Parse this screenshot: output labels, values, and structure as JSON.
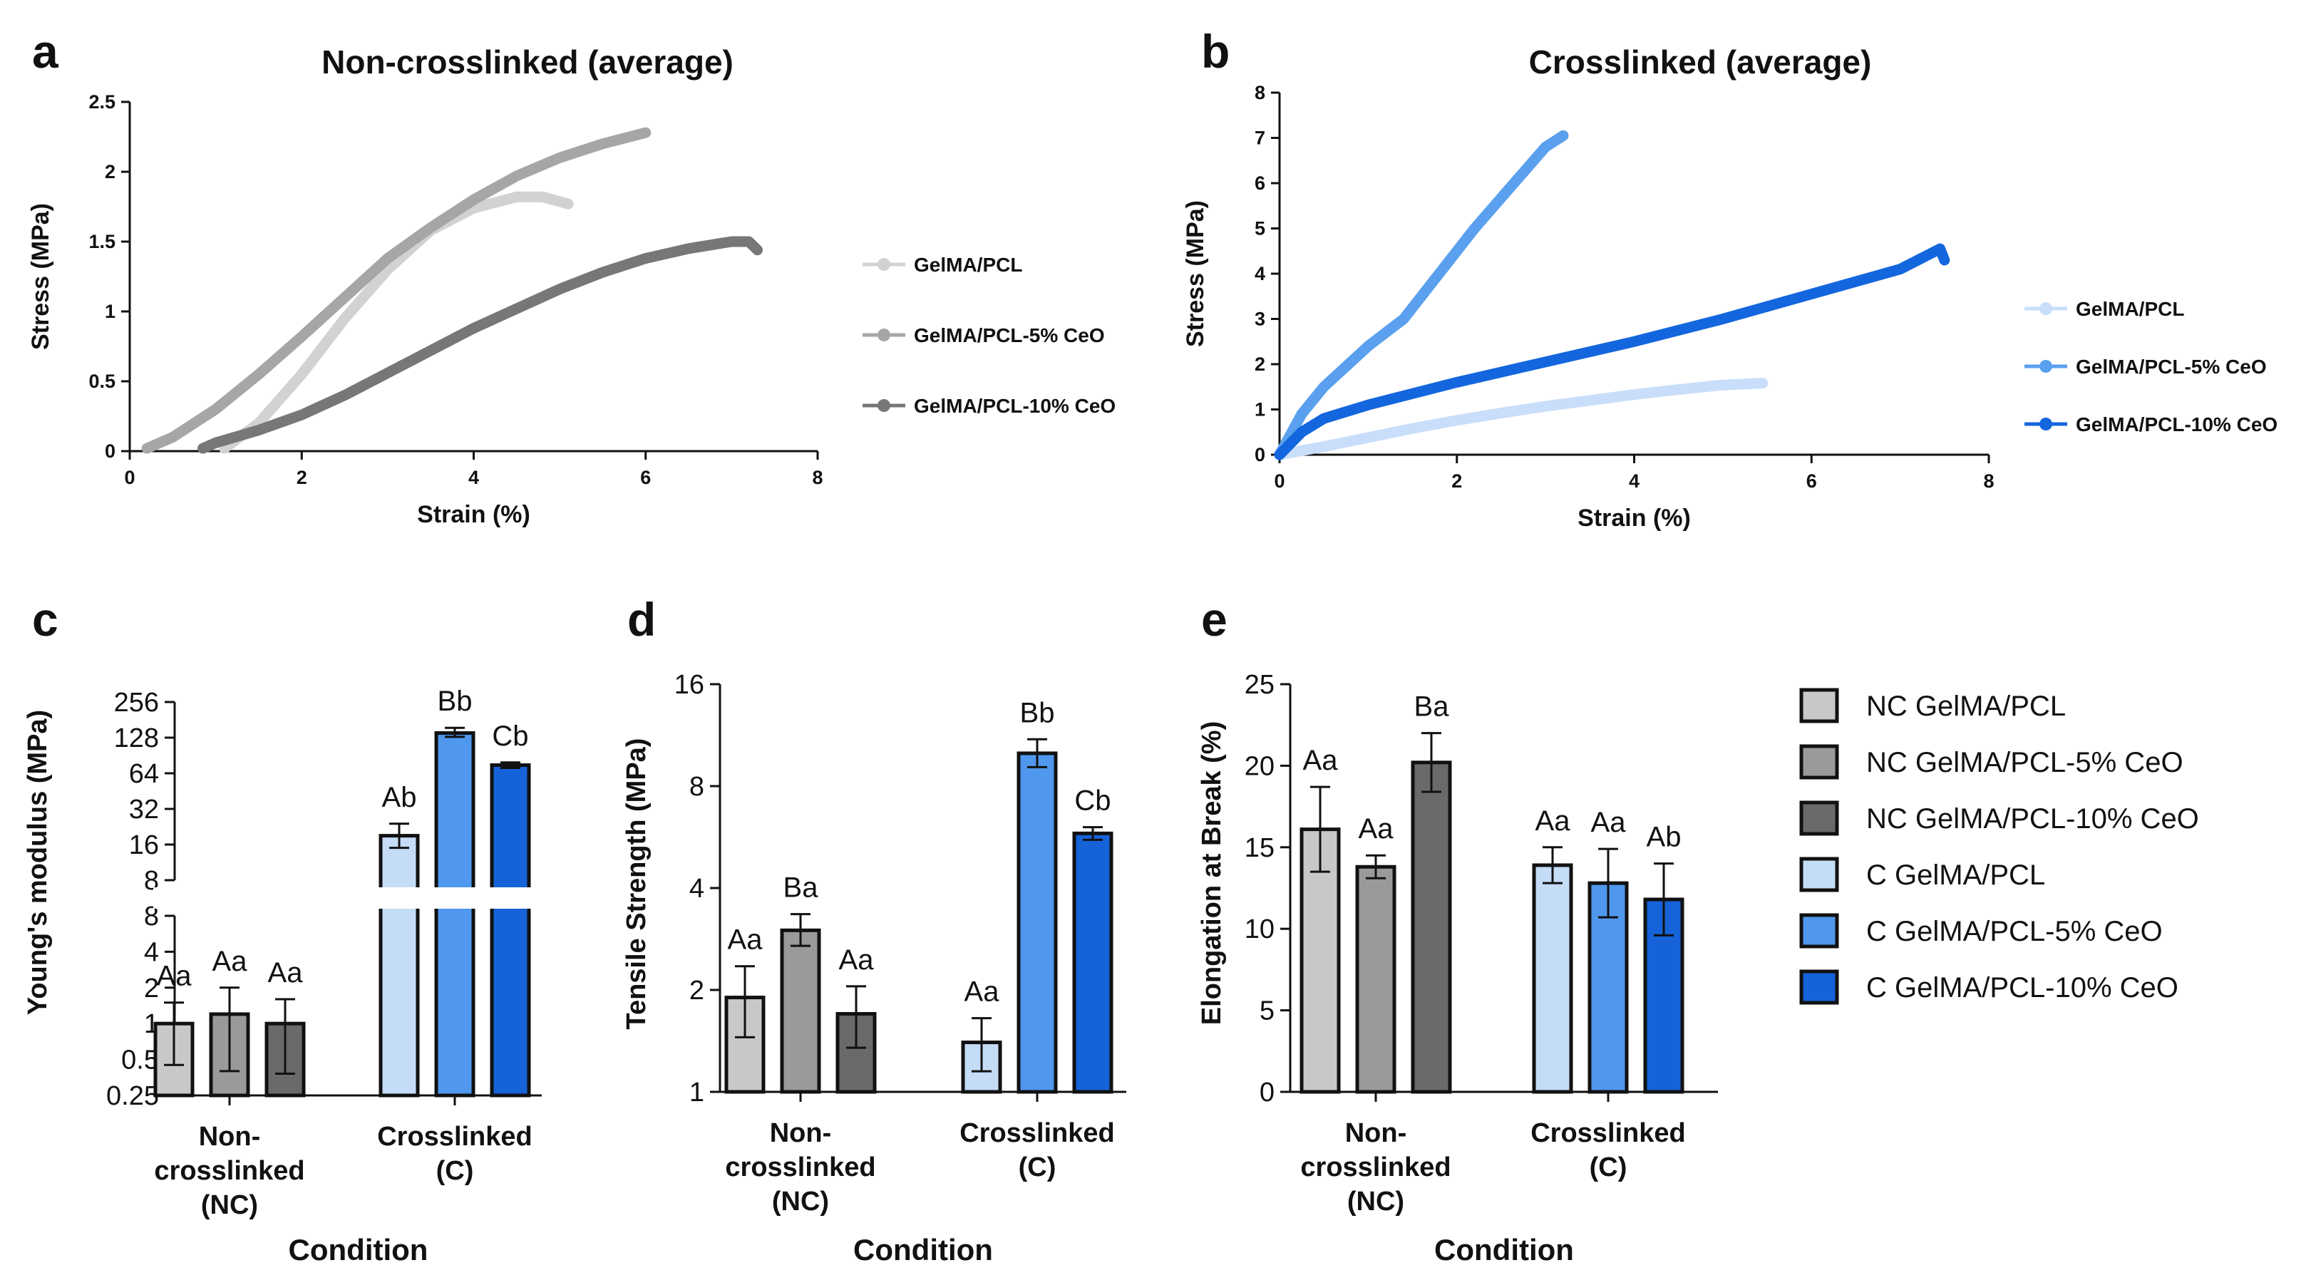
{
  "panels": {
    "a": {
      "letter": "a",
      "title": "Non-crosslinked (average)"
    },
    "b": {
      "letter": "b",
      "title": "Crosslinked (average)"
    },
    "c": {
      "letter": "c"
    },
    "d": {
      "letter": "d"
    },
    "e": {
      "letter": "e"
    }
  },
  "colors": {
    "nc_pcl": "#c8c8c8",
    "nc_5": "#9a9a9a",
    "nc_10": "#6a6a6a",
    "c_pcl": "#c5dcf7",
    "c_5": "#4f98ee",
    "c_10": "#1662d8",
    "line_nc_pcl": "#d2d2d2",
    "line_nc_5": "#a6a6a6",
    "line_nc_10": "#777777",
    "line_c_pcl": "#c9defa",
    "line_c_5": "#5aa0ee",
    "line_c_10": "#1466de"
  },
  "chart_data": [
    {
      "id": "a",
      "type": "line",
      "title": "Non-crosslinked (average)",
      "xlabel": "Strain (%)",
      "ylabel": "Stress (MPa)",
      "xlim": [
        0,
        8
      ],
      "ylim": [
        0,
        2.5
      ],
      "xticks": [
        0,
        2,
        4,
        6,
        8
      ],
      "xtick_labels": [
        "0",
        "2",
        "4",
        "6",
        "8"
      ],
      "yticks": [
        0,
        0.5,
        1,
        1.5,
        2,
        2.5
      ],
      "ytick_labels": [
        "0",
        "0.5",
        "1",
        "1.5",
        "2",
        "2.5"
      ],
      "series": [
        {
          "name": "GelMA/PCL",
          "color_key": "line_nc_pcl",
          "x": [
            1.1,
            1.5,
            2.0,
            2.5,
            3.0,
            3.5,
            4.0,
            4.5,
            4.8,
            5.1
          ],
          "y": [
            0.02,
            0.2,
            0.55,
            0.95,
            1.3,
            1.58,
            1.74,
            1.82,
            1.82,
            1.77
          ]
        },
        {
          "name": "GelMA/PCL-5% CeO",
          "color_key": "line_nc_5",
          "x": [
            0.2,
            0.5,
            1.0,
            1.5,
            2.0,
            2.5,
            3.0,
            3.5,
            4.0,
            4.5,
            5.0,
            5.5,
            6.0
          ],
          "y": [
            0.02,
            0.1,
            0.3,
            0.55,
            0.82,
            1.1,
            1.38,
            1.6,
            1.8,
            1.97,
            2.1,
            2.2,
            2.28
          ]
        },
        {
          "name": "GelMA/PCL-10% CeO",
          "color_key": "line_nc_10",
          "x": [
            0.85,
            1.0,
            1.5,
            2.0,
            2.5,
            3.0,
            3.5,
            4.0,
            4.5,
            5.0,
            5.5,
            6.0,
            6.5,
            7.0,
            7.2,
            7.3
          ],
          "y": [
            0.02,
            0.06,
            0.15,
            0.26,
            0.4,
            0.56,
            0.72,
            0.88,
            1.02,
            1.16,
            1.28,
            1.38,
            1.45,
            1.5,
            1.5,
            1.44
          ]
        }
      ]
    },
    {
      "id": "b",
      "type": "line",
      "title": "Crosslinked (average)",
      "xlabel": "Strain (%)",
      "ylabel": "Stress (MPa)",
      "xlim": [
        0,
        8
      ],
      "ylim": [
        0,
        8
      ],
      "xticks": [
        0,
        2,
        4,
        6,
        8
      ],
      "xtick_labels": [
        "0",
        "2",
        "4",
        "6",
        "8"
      ],
      "yticks": [
        0,
        1,
        2,
        3,
        4,
        5,
        6,
        7,
        8
      ],
      "ytick_labels": [
        "0",
        "1",
        "2",
        "3",
        "4",
        "5",
        "6",
        "7",
        "8"
      ],
      "series": [
        {
          "name": "GelMA/PCL",
          "color_key": "line_c_pcl",
          "x": [
            0,
            0.5,
            1,
            1.5,
            2,
            2.5,
            3,
            3.5,
            4,
            4.5,
            5,
            5.45
          ],
          "y": [
            0,
            0.18,
            0.38,
            0.58,
            0.76,
            0.92,
            1.07,
            1.2,
            1.33,
            1.44,
            1.54,
            1.58
          ]
        },
        {
          "name": "GelMA/PCL-5% CeO",
          "color_key": "line_c_5",
          "x": [
            0,
            0.25,
            0.5,
            1.0,
            1.4,
            1.8,
            2.2,
            2.6,
            3.0,
            3.2
          ],
          "y": [
            0,
            0.9,
            1.5,
            2.4,
            3.0,
            4.0,
            5.0,
            5.9,
            6.8,
            7.05
          ]
        },
        {
          "name": "GelMA/PCL-10% CeO",
          "color_key": "line_c_10",
          "x": [
            0,
            0.25,
            0.5,
            1,
            2,
            3,
            4,
            5,
            6,
            7,
            7.45,
            7.5
          ],
          "y": [
            0,
            0.5,
            0.8,
            1.1,
            1.6,
            2.05,
            2.5,
            3.0,
            3.55,
            4.1,
            4.55,
            4.3
          ]
        }
      ]
    },
    {
      "id": "c",
      "type": "bar",
      "yscale": "log2-broken",
      "ylabel": "Young's modulus (MPa)",
      "xlabel": "Condition",
      "groups": [
        "Non-crosslinked (NC)",
        "Crosslinked (C)"
      ],
      "group_label_lines": [
        [
          "Non-",
          "crosslinked",
          "(NC)"
        ],
        [
          "Crosslinked",
          "(C)"
        ]
      ],
      "lower_ylim": [
        0.25,
        8
      ],
      "upper_ylim": [
        8,
        256
      ],
      "lower_ticks": [
        0.25,
        0.5,
        1,
        2,
        4,
        8
      ],
      "lower_tick_labels": [
        "0.25",
        "0.5",
        "1",
        "2",
        "4",
        "8"
      ],
      "upper_ticks": [
        8,
        16,
        32,
        64,
        128,
        256
      ],
      "upper_tick_labels": [
        "8",
        "16",
        "32",
        "64",
        "128",
        "256"
      ],
      "series": [
        {
          "name": "NC GelMA/PCL",
          "group": 0,
          "color_key": "nc_pcl",
          "value": 1.0,
          "err_low": 0.45,
          "err_high": 1.5,
          "label": "Aa"
        },
        {
          "name": "NC GelMA/PCL-5% CeO",
          "group": 0,
          "color_key": "nc_5",
          "value": 1.2,
          "err_low": 0.4,
          "err_high": 2.0,
          "label": "Aa"
        },
        {
          "name": "NC GelMA/PCL-10% CeO",
          "group": 0,
          "color_key": "nc_10",
          "value": 1.0,
          "err_low": 0.38,
          "err_high": 1.6,
          "label": "Aa"
        },
        {
          "name": "C GelMA/PCL",
          "group": 1,
          "color_key": "c_pcl",
          "value": 19,
          "err_low": 15,
          "err_high": 24,
          "label": "Ab"
        },
        {
          "name": "C GelMA/PCL-5% CeO",
          "group": 1,
          "color_key": "c_5",
          "value": 140,
          "err_low": 130,
          "err_high": 155,
          "label": "Bb"
        },
        {
          "name": "C GelMA/PCL-10% CeO",
          "group": 1,
          "color_key": "c_10",
          "value": 75,
          "err_low": 71,
          "err_high": 79,
          "label": "Cb"
        }
      ]
    },
    {
      "id": "d",
      "type": "bar",
      "yscale": "log2",
      "ylabel": "Tensile Strength (MPa)",
      "xlabel": "Condition",
      "groups": [
        "Non-crosslinked (NC)",
        "Crosslinked (C)"
      ],
      "group_label_lines": [
        [
          "Non-",
          "crosslinked",
          "(NC)"
        ],
        [
          "Crosslinked",
          "(C)"
        ]
      ],
      "ylim": [
        1,
        16
      ],
      "yticks": [
        1,
        2,
        4,
        8,
        16
      ],
      "ytick_labels": [
        "1",
        "2",
        "4",
        "8",
        "16"
      ],
      "series": [
        {
          "name": "NC GelMA/PCL",
          "group": 0,
          "color_key": "nc_pcl",
          "value": 1.9,
          "err_low": 1.45,
          "err_high": 2.35,
          "label": "Aa"
        },
        {
          "name": "NC GelMA/PCL-5% CeO",
          "group": 0,
          "color_key": "nc_5",
          "value": 3.0,
          "err_low": 2.7,
          "err_high": 3.35,
          "label": "Ba"
        },
        {
          "name": "NC GelMA/PCL-10% CeO",
          "group": 0,
          "color_key": "nc_10",
          "value": 1.7,
          "err_low": 1.35,
          "err_high": 2.05,
          "label": "Aa"
        },
        {
          "name": "C GelMA/PCL",
          "group": 1,
          "color_key": "c_pcl",
          "value": 1.4,
          "err_low": 1.15,
          "err_high": 1.65,
          "label": "Aa"
        },
        {
          "name": "C GelMA/PCL-5% CeO",
          "group": 1,
          "color_key": "c_5",
          "value": 10.0,
          "err_low": 9.1,
          "err_high": 11.0,
          "label": "Bb"
        },
        {
          "name": "C GelMA/PCL-10% CeO",
          "group": 1,
          "color_key": "c_10",
          "value": 5.8,
          "err_low": 5.55,
          "err_high": 6.05,
          "label": "Cb"
        }
      ]
    },
    {
      "id": "e",
      "type": "bar",
      "yscale": "linear",
      "ylabel": "Elongation at Break (%)",
      "xlabel": "Condition",
      "groups": [
        "Non-crosslinked (NC)",
        "Crosslinked (C)"
      ],
      "group_label_lines": [
        [
          "Non-",
          "crosslinked",
          "(NC)"
        ],
        [
          "Crosslinked",
          "(C)"
        ]
      ],
      "ylim": [
        0,
        25
      ],
      "yticks": [
        0,
        5,
        10,
        15,
        20,
        25
      ],
      "ytick_labels": [
        "0",
        "5",
        "10",
        "15",
        "20",
        "25"
      ],
      "series": [
        {
          "name": "NC GelMA/PCL",
          "group": 0,
          "color_key": "nc_pcl",
          "value": 16.1,
          "err_low": 13.5,
          "err_high": 18.7,
          "label": "Aa"
        },
        {
          "name": "NC GelMA/PCL-5% CeO",
          "group": 0,
          "color_key": "nc_5",
          "value": 13.8,
          "err_low": 13.1,
          "err_high": 14.5,
          "label": "Aa"
        },
        {
          "name": "NC GelMA/PCL-10% CeO",
          "group": 0,
          "color_key": "nc_10",
          "value": 20.2,
          "err_low": 18.4,
          "err_high": 22.0,
          "label": "Ba"
        },
        {
          "name": "C GelMA/PCL",
          "group": 1,
          "color_key": "c_pcl",
          "value": 13.9,
          "err_low": 12.8,
          "err_high": 15.0,
          "label": "Aa"
        },
        {
          "name": "C GelMA/PCL-5% CeO",
          "group": 1,
          "color_key": "c_5",
          "value": 12.8,
          "err_low": 10.7,
          "err_high": 14.9,
          "label": "Aa"
        },
        {
          "name": "C GelMA/PCL-10% CeO",
          "group": 1,
          "color_key": "c_10",
          "value": 11.8,
          "err_low": 9.6,
          "err_high": 14.0,
          "label": "Ab"
        }
      ]
    }
  ],
  "bar_legend": {
    "entries": [
      {
        "label": "NC GelMA/PCL",
        "color_key": "nc_pcl"
      },
      {
        "label": "NC GelMA/PCL-5% CeO",
        "color_key": "nc_5"
      },
      {
        "label": "NC GelMA/PCL-10% CeO",
        "color_key": "nc_10"
      },
      {
        "label": "C GelMA/PCL",
        "color_key": "c_pcl"
      },
      {
        "label": "C GelMA/PCL-5% CeO",
        "color_key": "c_5"
      },
      {
        "label": "C GelMA/PCL-10% CeO",
        "color_key": "c_10"
      }
    ]
  }
}
